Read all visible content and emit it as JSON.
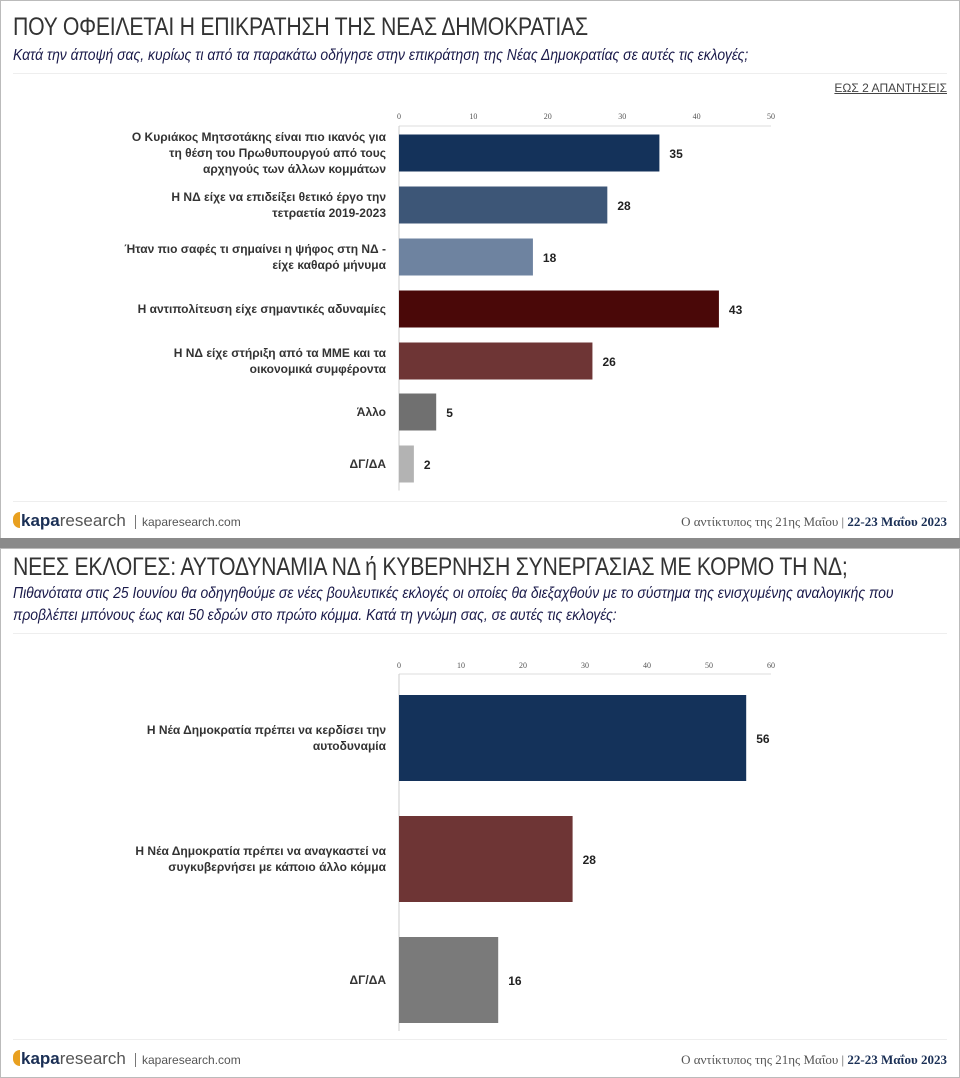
{
  "panels": [
    {
      "title": "ΠΟΥ ΟΦΕΙΛΕΤΑΙ Η ΕΠΙΚΡΑΤΗΣΗ ΤΗΣ ΝΕΑΣ ΔΗΜΟΚΡΑΤΙΑΣ",
      "subtitle": "Κατά την άποψή σας, κυρίως τι από τα παρακάτω οδήγησε στην επικράτηση της Νέας Δημοκρατίας σε αυτές τις εκλογές;",
      "note": "ΕΩΣ 2 ΑΠΑΝΤΗΣΕΙΣ"
    },
    {
      "title": "ΝΕΕΣ ΕΚΛΟΓΕΣ: ΑΥΤΟΔΥΝΑΜΙΑ ΝΔ ή ΚΥΒΕΡΝΗΣΗ ΣΥΝΕΡΓΑΣΙΑΣ ΜΕ ΚΟΡΜΟ ΤΗ ΝΔ;",
      "subtitle": "Πιθανότατα στις 25 Ιουνίου θα οδηγηθούμε σε νέες βουλευτικές εκλογές οι οποίες θα διεξαχθούν με το σύστημα της ενισχυμένης αναλογικής που προβλέπει μπόνους έως και 50 εδρών στο πρώτο κόμμα. Κατά τη γνώμη σας, σε αυτές τις εκλογές:"
    }
  ],
  "footer": {
    "logo_bold": "kapa",
    "logo_rest": "research",
    "url": "kaparesearch.com",
    "caption": "Ο αντίκτυπος της 21ης Μαΐου |",
    "date": "22-23 Μαΐου 2023"
  },
  "chart_data": [
    {
      "type": "bar",
      "orientation": "horizontal",
      "categories": [
        "Ο Κυριάκος Μητσοτάκης είναι πιο ικανός για|τη θέση του Πρωθυπουργού από τους|αρχηγούς των άλλων κομμάτων",
        "Η ΝΔ είχε να επιδείξει θετικό έργο την|τετραετία 2019-2023",
        "Ήταν πιο σαφές τι σημαίνει η ψήφος στη ΝΔ -|είχε καθαρό μήνυμα",
        "Η αντιπολίτευση είχε σημαντικές αδυναμίες",
        "Η ΝΔ είχε στήριξη από τα ΜΜΕ και τα|οικονομικά συμφέροντα",
        "Άλλο",
        "ΔΓ/ΔΑ"
      ],
      "values": [
        35,
        28,
        18,
        43,
        26,
        5,
        2
      ],
      "colors": [
        "#14325a",
        "#3d5677",
        "#6e83a0",
        "#4a0808",
        "#6e3535",
        "#707070",
        "#b3b3b3"
      ],
      "xlim": [
        0,
        50
      ],
      "ticks": [
        0,
        10,
        20,
        30,
        40,
        50
      ],
      "axis_position": "top",
      "grid": false
    },
    {
      "type": "bar",
      "orientation": "horizontal",
      "categories": [
        "Η Νέα Δημοκρατία πρέπει να κερδίσει την|αυτοδυναμία",
        "Η Νέα Δημοκρατία πρέπει να αναγκαστεί να|συγκυβερνήσει με κάποιο άλλο κόμμα",
        "ΔΓ/ΔΑ"
      ],
      "values": [
        56,
        28,
        16
      ],
      "colors": [
        "#14325a",
        "#6e3535",
        "#7a7a7a"
      ],
      "xlim": [
        0,
        60
      ],
      "ticks": [
        0,
        10,
        20,
        30,
        40,
        50,
        60
      ],
      "axis_position": "top",
      "grid": false
    }
  ]
}
